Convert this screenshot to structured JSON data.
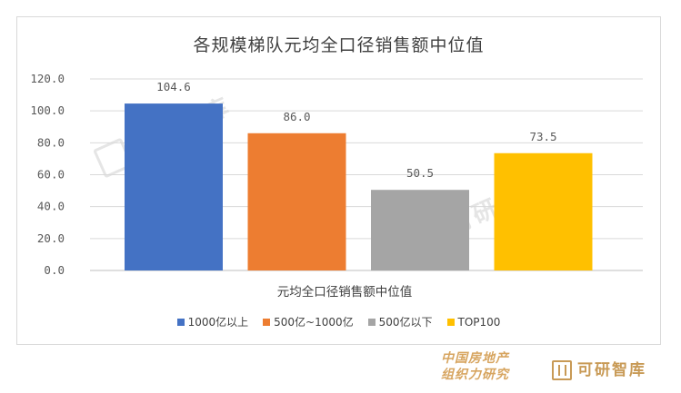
{
  "chart_data": {
    "type": "bar",
    "title": "各规模梯队元均全口径销售额中位值",
    "xlabel": "元均全口径销售额中位值",
    "ylabel": "",
    "ylim": [
      0,
      120
    ],
    "yticks": [
      "0.0",
      "20.0",
      "40.0",
      "60.0",
      "80.0",
      "100.0",
      "120.0"
    ],
    "grid": true,
    "legend_position": "bottom",
    "series": [
      {
        "name": "1000亿以上",
        "value": 104.6,
        "label": "104.6",
        "color": "#4472c4"
      },
      {
        "name": "500亿~1000亿",
        "value": 86.0,
        "label": "86.0",
        "color": "#ed7d31"
      },
      {
        "name": "500亿以下",
        "value": 50.5,
        "label": "50.5",
        "color": "#a5a5a5"
      },
      {
        "name": "TOP100",
        "value": 73.5,
        "label": "73.5",
        "color": "#ffc000"
      }
    ]
  },
  "watermark": {
    "text": "可研智库"
  },
  "footer": {
    "org_line1": "中国房地产",
    "org_line2": "组织力研究",
    "brand": "可研智库"
  }
}
